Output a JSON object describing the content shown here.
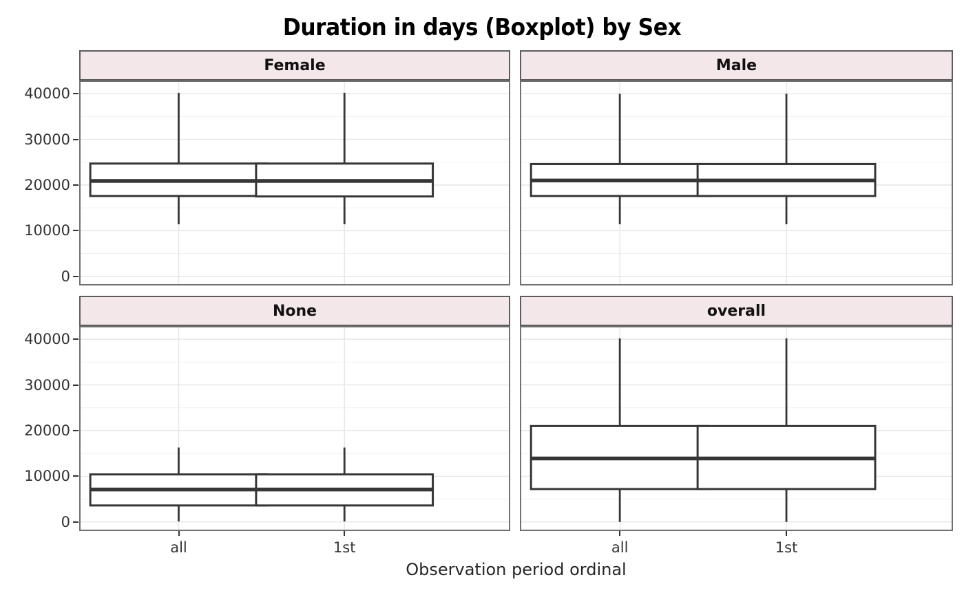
{
  "chart_data": {
    "type": "boxplot",
    "title": "Duration in days (Boxplot) by Sex",
    "xlabel": "Observation period ordinal",
    "facet_by": "Sex",
    "categories": [
      "all",
      "1st"
    ],
    "ylim": [
      -2000,
      42900
    ],
    "yticks": [
      0,
      10000,
      20000,
      30000,
      40000
    ],
    "ytick_labels": [
      "0",
      "10000",
      "20000",
      "30000",
      "40000"
    ],
    "yticks_minor": [
      5000,
      15000,
      25000,
      35000
    ],
    "grid": true,
    "legend": "none",
    "facets": [
      {
        "label": "Female",
        "boxes": [
          {
            "category": "all",
            "min": 11400,
            "q1": 17600,
            "median": 20900,
            "q3": 24700,
            "max": 40200
          },
          {
            "category": "1st",
            "min": 11400,
            "q1": 17500,
            "median": 20900,
            "q3": 24700,
            "max": 40200
          }
        ]
      },
      {
        "label": "Male",
        "boxes": [
          {
            "category": "all",
            "min": 11400,
            "q1": 17600,
            "median": 21000,
            "q3": 24600,
            "max": 40000
          },
          {
            "category": "1st",
            "min": 11400,
            "q1": 17600,
            "median": 21000,
            "q3": 24600,
            "max": 40000
          }
        ]
      },
      {
        "label": "None",
        "boxes": [
          {
            "category": "all",
            "min": 100,
            "q1": 3600,
            "median": 7100,
            "q3": 10400,
            "max": 16300
          },
          {
            "category": "1st",
            "min": 100,
            "q1": 3600,
            "median": 7100,
            "q3": 10400,
            "max": 16300
          }
        ]
      },
      {
        "label": "overall",
        "boxes": [
          {
            "category": "all",
            "min": 0,
            "q1": 7200,
            "median": 13900,
            "q3": 21000,
            "max": 40200
          },
          {
            "category": "1st",
            "min": 0,
            "q1": 7200,
            "median": 13900,
            "q3": 21000,
            "max": 40200
          }
        ]
      }
    ],
    "colors": {
      "background": "#ffffff",
      "strip_fill": "#f4e7ea",
      "strip_border": "#5c5c5c",
      "panel_border": "#707070",
      "grid_major": "#e6e6e6",
      "grid_minor": "#f2f2f2",
      "box_stroke": "#363636",
      "box_fill": "#ffffff",
      "tick_color": "#333333"
    }
  }
}
